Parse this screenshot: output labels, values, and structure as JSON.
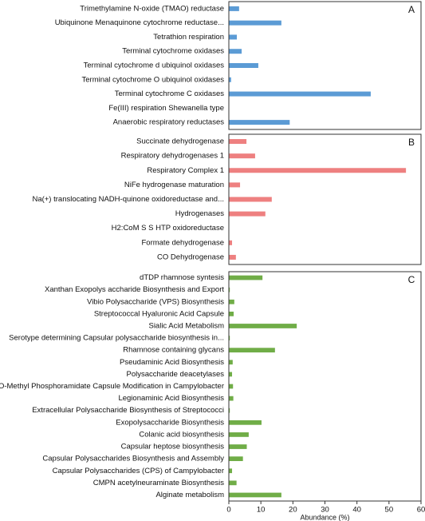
{
  "chart_data": [
    {
      "type": "bar",
      "orientation": "horizontal",
      "label": "A",
      "color": "#5b9bd5",
      "xlim": [
        0,
        60
      ],
      "categories": [
        "Trimethylamine N-oxide (TMAO) reductase",
        "Ubiquinone Menaquinone cytochrome reductase...",
        "Tetrathion respiration",
        "Terminal cytochrome oxidases",
        "Terminal cytochrome d ubiquinol oxidases",
        "Terminal cytochrome O ubiquinol oxidases",
        "Terminal cytochrome C oxidases",
        "Fe(III) respiration Shewanella type",
        "Anaerobic respiratory reductases"
      ],
      "values": [
        3.2,
        16.4,
        2.5,
        4,
        9.2,
        0.7,
        44.3,
        0,
        19
      ]
    },
    {
      "type": "bar",
      "orientation": "horizontal",
      "label": "B",
      "color": "#ee8080",
      "xlim": [
        0,
        60
      ],
      "categories": [
        "Succinate dehydrogenase",
        "Respiratory dehydrogenases 1",
        "Respiratory Complex 1",
        "NiFe hydrogenase maturation",
        "Na(+) translocating NADH-quinone oxidoreductase and...",
        "Hydrogenases",
        "H2:CoM S S HTP oxidoreductase",
        "Formate dehydrogenase",
        "CO Dehydrogenase"
      ],
      "values": [
        5.5,
        8.2,
        55.3,
        3.5,
        13.4,
        11.4,
        0,
        1,
        2.2
      ]
    },
    {
      "type": "bar",
      "orientation": "horizontal",
      "label": "C",
      "color": "#70ad47",
      "xlim": [
        0,
        60
      ],
      "xticks": [
        0,
        10,
        20,
        30,
        40,
        50,
        60
      ],
      "xlabel": "Abundance (%)",
      "categories": [
        "dTDP rhamnose syntesis",
        "Xanthan Exopolys accharide Biosynthesis and Export",
        "Vibio Polysaccharide (VPS) Biosynthesis",
        "Streptococcal Hyaluronic Acid Capsule",
        "Sialic Acid Metabolism",
        "Serotype determining Capsular polysaccharide biosynthesis in...",
        "Rhamnose containing glycans",
        "Pseudaminic Acid Biosynthesis",
        "Polysaccharide deacetylases",
        "O-Methyl Phosphoramidate Capsule Modification in Campylobacter",
        "Legionaminic Acid Biosynthesis",
        "Extracellular Polysaccharide Biosynthesis of Streptococci",
        "Exopolysaccharide Biosynthesis",
        "Colanic acid biosynthesis",
        "Capsular heptose biosynthesis",
        "Capsular Polysaccharides Biosynthesis and Assembly",
        "Capsular Polysaccharides (CPS) of Campylobacter",
        "CMPN acetylneuraminate Biosynthesis",
        "Alginate metabolism"
      ],
      "values": [
        10.5,
        0.3,
        1.7,
        1.5,
        21.2,
        0.3,
        14.4,
        1.2,
        1,
        1.3,
        1.4,
        0.3,
        10.2,
        6.2,
        5.6,
        4.4,
        1,
        2.4,
        16.4
      ]
    }
  ]
}
